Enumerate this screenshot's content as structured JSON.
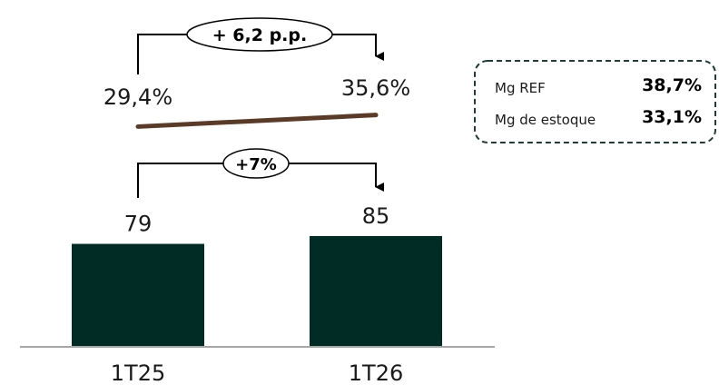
{
  "chart_data": [
    {
      "type": "line",
      "categories": [
        "1T25",
        "1T26"
      ],
      "values": [
        29.4,
        35.6
      ],
      "value_labels": [
        "29,4%",
        "35,6%"
      ],
      "change_label": "+ 6,2 p.p.",
      "color": "#5b3b27"
    },
    {
      "type": "bar",
      "categories": [
        "1T25",
        "1T26"
      ],
      "values": [
        79,
        85
      ],
      "value_labels": [
        "79",
        "85"
      ],
      "change_label": "+7%",
      "color": "#002c26"
    }
  ],
  "info_box": {
    "rows": [
      {
        "label": "Mg REF",
        "value": "38,7%"
      },
      {
        "label": "Mg de estoque",
        "value": "33,1%"
      }
    ],
    "border_color": "#1f3d36"
  }
}
